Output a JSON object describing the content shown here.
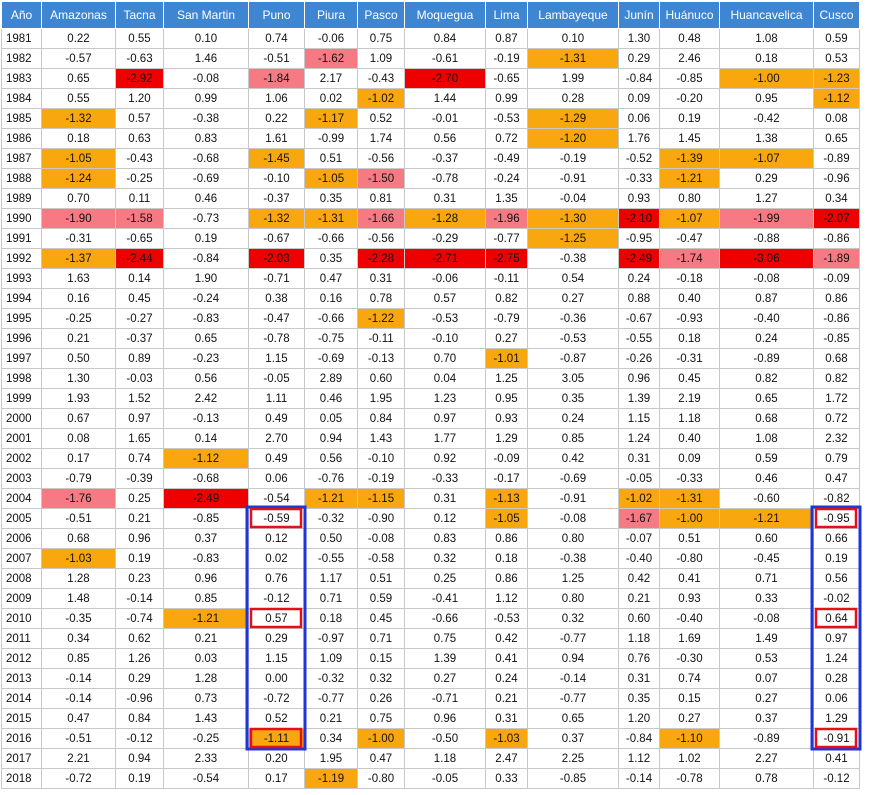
{
  "chart_data": {
    "type": "table",
    "columns": [
      "Año",
      "Amazonas",
      "Tacna",
      "San Martin",
      "Puno",
      "Piura",
      "Pasco",
      "Moquegua",
      "Lima",
      "Lambayeque",
      "Junín",
      "Huánuco",
      "Huancavelica",
      "Cusco"
    ],
    "rows": [
      [
        "1981",
        "0.22",
        "0.55",
        "0.10",
        "0.74",
        "-0.06",
        "0.75",
        "0.84",
        "0.87",
        "0.10",
        "1.30",
        "0.48",
        "1.08",
        "0.59"
      ],
      [
        "1982",
        "-0.57",
        "-0.63",
        "1.46",
        "-0.51",
        "-1.62",
        "1.09",
        "-0.61",
        "-0.19",
        "-1.31",
        "0.29",
        "2.46",
        "0.18",
        "0.53"
      ],
      [
        "1983",
        "0.65",
        "-2.92",
        "-0.08",
        "-1.84",
        "2.17",
        "-0.43",
        "-2.70",
        "-0.65",
        "1.99",
        "-0.84",
        "-0.85",
        "-1.00",
        "-1.23"
      ],
      [
        "1984",
        "0.55",
        "1.20",
        "0.99",
        "1.06",
        "0.02",
        "-1.02",
        "1.44",
        "0.99",
        "0.28",
        "0.09",
        "-0.20",
        "0.95",
        "-1.12"
      ],
      [
        "1985",
        "-1.32",
        "0.57",
        "-0.38",
        "0.22",
        "-1.17",
        "0.52",
        "-0.01",
        "-0.53",
        "-1.29",
        "0.06",
        "0.19",
        "-0.42",
        "0.08"
      ],
      [
        "1986",
        "0.18",
        "0.63",
        "0.83",
        "1.61",
        "-0.99",
        "1.74",
        "0.56",
        "0.72",
        "-1.20",
        "1.76",
        "1.45",
        "1.38",
        "0.65"
      ],
      [
        "1987",
        "-1.05",
        "-0.43",
        "-0.68",
        "-1.45",
        "0.51",
        "-0.56",
        "-0.37",
        "-0.49",
        "-0.19",
        "-0.52",
        "-1.39",
        "-1.07",
        "-0.89"
      ],
      [
        "1988",
        "-1.24",
        "-0.25",
        "-0.69",
        "-0.10",
        "-1.05",
        "-1.50",
        "-0.78",
        "-0.24",
        "-0.91",
        "-0.33",
        "-1.21",
        "0.29",
        "-0.96"
      ],
      [
        "1989",
        "0.70",
        "0.11",
        "0.46",
        "-0.37",
        "0.35",
        "0.81",
        "0.31",
        "1.35",
        "-0.04",
        "0.93",
        "0.80",
        "1.27",
        "0.34"
      ],
      [
        "1990",
        "-1.90",
        "-1.58",
        "-0.73",
        "-1.32",
        "-1.31",
        "-1.66",
        "-1.28",
        "-1.96",
        "-1.30",
        "-2.10",
        "-1.07",
        "-1.99",
        "-2.07"
      ],
      [
        "1991",
        "-0.31",
        "-0.65",
        "0.19",
        "-0.67",
        "-0.66",
        "-0.56",
        "-0.29",
        "-0.77",
        "-1.25",
        "-0.95",
        "-0.47",
        "-0.88",
        "-0.86"
      ],
      [
        "1992",
        "-1.37",
        "-2.44",
        "-0.84",
        "-2.03",
        "0.35",
        "-2.28",
        "-2.71",
        "-2.75",
        "-0.38",
        "-2.49",
        "-1.74",
        "-3.06",
        "-1.89"
      ],
      [
        "1993",
        "1.63",
        "0.14",
        "1.90",
        "-0.71",
        "0.47",
        "0.31",
        "-0.06",
        "-0.11",
        "0.54",
        "0.24",
        "-0.18",
        "-0.08",
        "-0.09"
      ],
      [
        "1994",
        "0.16",
        "0.45",
        "-0.24",
        "0.38",
        "0.16",
        "0.78",
        "0.57",
        "0.82",
        "0.27",
        "0.88",
        "0.40",
        "0.87",
        "0.86"
      ],
      [
        "1995",
        "-0.25",
        "-0.27",
        "-0.83",
        "-0.47",
        "-0.66",
        "-1.22",
        "-0.53",
        "-0.79",
        "-0.36",
        "-0.67",
        "-0.93",
        "-0.40",
        "-0.86"
      ],
      [
        "1996",
        "0.21",
        "-0.37",
        "0.65",
        "-0.78",
        "-0.75",
        "-0.11",
        "-0.10",
        "0.27",
        "-0.53",
        "-0.55",
        "0.18",
        "0.24",
        "-0.85"
      ],
      [
        "1997",
        "0.50",
        "0.89",
        "-0.23",
        "1.15",
        "-0.69",
        "-0.13",
        "0.70",
        "-1.01",
        "-0.87",
        "-0.26",
        "-0.31",
        "-0.89",
        "0.68"
      ],
      [
        "1998",
        "1.30",
        "-0.03",
        "0.56",
        "-0.05",
        "2.89",
        "0.60",
        "0.04",
        "1.25",
        "3.05",
        "0.96",
        "0.45",
        "0.82",
        "0.82"
      ],
      [
        "1999",
        "1.93",
        "1.52",
        "2.42",
        "1.11",
        "0.46",
        "1.95",
        "1.23",
        "0.95",
        "0.35",
        "1.39",
        "2.19",
        "0.65",
        "1.72"
      ],
      [
        "2000",
        "0.67",
        "0.97",
        "-0.13",
        "0.49",
        "0.05",
        "0.84",
        "0.97",
        "0.93",
        "0.24",
        "1.15",
        "1.18",
        "0.68",
        "0.72"
      ],
      [
        "2001",
        "0.08",
        "1.65",
        "0.14",
        "2.70",
        "0.94",
        "1.43",
        "1.77",
        "1.29",
        "0.85",
        "1.24",
        "0.40",
        "1.08",
        "2.32"
      ],
      [
        "2002",
        "0.17",
        "0.74",
        "-1.12",
        "0.49",
        "0.56",
        "-0.10",
        "0.92",
        "-0.09",
        "0.42",
        "0.31",
        "0.09",
        "0.59",
        "0.79"
      ],
      [
        "2003",
        "-0.79",
        "-0.39",
        "-0.68",
        "0.06",
        "-0.76",
        "-0.19",
        "-0.33",
        "-0.17",
        "-0.69",
        "-0.05",
        "-0.33",
        "0.46",
        "0.47"
      ],
      [
        "2004",
        "-1.76",
        "0.25",
        "-2.49",
        "-0.54",
        "-1.21",
        "-1.15",
        "0.31",
        "-1.13",
        "-0.91",
        "-1.02",
        "-1.31",
        "-0.60",
        "-0.82"
      ],
      [
        "2005",
        "-0.51",
        "0.21",
        "-0.85",
        "-0.59",
        "-0.32",
        "-0.90",
        "0.12",
        "-1.05",
        "-0.08",
        "-1.67",
        "-1.00",
        "-1.21",
        "-0.95"
      ],
      [
        "2006",
        "0.68",
        "0.96",
        "0.37",
        "0.12",
        "0.50",
        "-0.08",
        "0.83",
        "0.86",
        "0.80",
        "-0.07",
        "0.51",
        "0.60",
        "0.66"
      ],
      [
        "2007",
        "-1.03",
        "0.19",
        "-0.83",
        "0.02",
        "-0.55",
        "-0.58",
        "0.32",
        "0.18",
        "-0.38",
        "-0.40",
        "-0.80",
        "-0.45",
        "0.19"
      ],
      [
        "2008",
        "1.28",
        "0.23",
        "0.96",
        "0.76",
        "1.17",
        "0.51",
        "0.25",
        "0.86",
        "1.25",
        "0.42",
        "0.41",
        "0.71",
        "0.56"
      ],
      [
        "2009",
        "1.48",
        "-0.14",
        "0.85",
        "-0.12",
        "0.71",
        "0.59",
        "-0.41",
        "1.12",
        "0.80",
        "0.21",
        "0.93",
        "0.33",
        "-0.02"
      ],
      [
        "2010",
        "-0.35",
        "-0.74",
        "-1.21",
        "0.57",
        "0.18",
        "0.45",
        "-0.66",
        "-0.53",
        "0.32",
        "0.60",
        "-0.40",
        "-0.08",
        "0.64"
      ],
      [
        "2011",
        "0.34",
        "0.62",
        "0.21",
        "0.29",
        "-0.97",
        "0.71",
        "0.75",
        "0.42",
        "-0.77",
        "1.18",
        "1.69",
        "1.49",
        "0.97"
      ],
      [
        "2012",
        "0.85",
        "1.26",
        "0.03",
        "1.15",
        "1.09",
        "0.15",
        "1.39",
        "0.41",
        "0.94",
        "0.76",
        "-0.30",
        "0.53",
        "1.24"
      ],
      [
        "2013",
        "-0.14",
        "0.29",
        "1.28",
        "0.00",
        "-0.32",
        "0.32",
        "0.27",
        "0.24",
        "-0.14",
        "0.31",
        "0.74",
        "0.07",
        "0.28"
      ],
      [
        "2014",
        "-0.14",
        "-0.96",
        "0.73",
        "-0.72",
        "-0.77",
        "0.26",
        "-0.71",
        "0.21",
        "-0.77",
        "0.35",
        "0.15",
        "0.27",
        "0.06"
      ],
      [
        "2015",
        "0.47",
        "0.84",
        "1.43",
        "0.52",
        "0.21",
        "0.75",
        "0.96",
        "0.31",
        "0.65",
        "1.20",
        "0.27",
        "0.37",
        "1.29"
      ],
      [
        "2016",
        "-0.51",
        "-0.12",
        "-0.25",
        "-1.11",
        "0.34",
        "-1.00",
        "-0.50",
        "-1.03",
        "0.37",
        "-0.84",
        "-1.10",
        "-0.89",
        "-0.91"
      ],
      [
        "2017",
        "2.21",
        "0.94",
        "2.33",
        "0.20",
        "1.95",
        "0.47",
        "1.18",
        "2.47",
        "2.25",
        "1.12",
        "1.02",
        "2.27",
        "0.41"
      ],
      [
        "2018",
        "-0.72",
        "0.19",
        "-0.54",
        "0.17",
        "-1.19",
        "-0.80",
        "-0.05",
        "0.33",
        "-0.85",
        "-0.14",
        "-0.78",
        "0.78",
        "-0.12"
      ]
    ],
    "highlight_rule": "values between -1.00 and -1.49 in orange, -1.50 to -1.99 in pink, -2.00 and below in red",
    "highlight_colors": {
      "orange": "#f9a70f",
      "pink": "#f67a83",
      "red": "#ef0000",
      "header": "#3f86d2"
    },
    "annotations": {
      "box_color": "#1f35d8",
      "cell_mark_color": "#e3101a",
      "boxes": [
        {
          "column": "Puno",
          "from": "2005",
          "to": "2016"
        },
        {
          "column": "Cusco",
          "from": "2005",
          "to": "2016"
        }
      ],
      "marked_cells": [
        {
          "column": "Puno",
          "year": "2005"
        },
        {
          "column": "Puno",
          "year": "2010"
        },
        {
          "column": "Puno",
          "year": "2016"
        },
        {
          "column": "Cusco",
          "year": "2005"
        },
        {
          "column": "Cusco",
          "year": "2010"
        },
        {
          "column": "Cusco",
          "year": "2016"
        }
      ]
    }
  }
}
